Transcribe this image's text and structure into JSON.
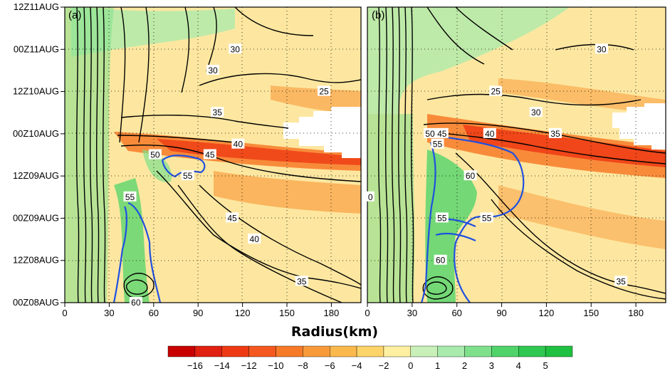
{
  "chart_data": [
    {
      "type": "heatmap",
      "panel_label": "(a)",
      "xlabel": "Radius(km)",
      "x_ticks": [
        0,
        30,
        60,
        90,
        120,
        150,
        180
      ],
      "xlim": [
        0,
        200
      ],
      "y_ticks": [
        "00Z08AUG",
        "12Z08AUG",
        "00Z09AUG",
        "12Z09AUG",
        "00Z10AUG",
        "12Z10AUG",
        "00Z11AUG",
        "12Z11AUG"
      ],
      "grid": "dotted",
      "contour_labels": [
        {
          "text": "30",
          "x": 115,
          "y": "00Z11AUG"
        },
        {
          "text": "30",
          "x": 100,
          "y": "18Z10AUG"
        },
        {
          "text": "25",
          "x": 175,
          "y": "12Z10AUG"
        },
        {
          "text": "35",
          "x": 103,
          "y": "06Z10AUG"
        },
        {
          "text": "40",
          "x": 117,
          "y": "21Z09AUG"
        },
        {
          "text": "45",
          "x": 98,
          "y": "18Z09AUG"
        },
        {
          "text": "50",
          "x": 61,
          "y": "18Z09AUG"
        },
        {
          "text": "55",
          "x": 83,
          "y": "12Z09AUG"
        },
        {
          "text": "55",
          "x": 44,
          "y": "06Z09AUG"
        },
        {
          "text": "45",
          "x": 113,
          "y": "00Z09AUG"
        },
        {
          "text": "40",
          "x": 128,
          "y": "18Z08AUG"
        },
        {
          "text": "35",
          "x": 160,
          "y": "06Z08AUG"
        },
        {
          "text": "60",
          "x": 48,
          "y": "00Z08AUG"
        }
      ]
    },
    {
      "type": "heatmap",
      "panel_label": "(b)",
      "xlabel": "Radius(km)",
      "x_ticks": [
        0,
        30,
        60,
        90,
        120,
        150,
        180
      ],
      "xlim": [
        0,
        200
      ],
      "y_ticks": [
        "00Z08AUG",
        "12Z08AUG",
        "00Z09AUG",
        "12Z09AUG",
        "00Z10AUG",
        "12Z10AUG",
        "00Z11AUG",
        "12Z11AUG"
      ],
      "grid": "dotted",
      "contour_labels": [
        {
          "text": "30",
          "x": 157,
          "y": "00Z11AUG"
        },
        {
          "text": "25",
          "x": 86,
          "y": "12Z10AUG"
        },
        {
          "text": "30",
          "x": 113,
          "y": "06Z10AUG"
        },
        {
          "text": "45",
          "x": 50,
          "y": "00Z10AUG"
        },
        {
          "text": "50",
          "x": 42,
          "y": "00Z10AUG"
        },
        {
          "text": "55",
          "x": 47,
          "y": "21Z09AUG"
        },
        {
          "text": "40",
          "x": 82,
          "y": "00Z10AUG"
        },
        {
          "text": "35",
          "x": 126,
          "y": "00Z10AUG"
        },
        {
          "text": "60",
          "x": 69,
          "y": "12Z09AUG"
        },
        {
          "text": "0",
          "x": 2,
          "y": "06Z09AUG"
        },
        {
          "text": "55",
          "x": 50,
          "y": "00Z09AUG"
        },
        {
          "text": "55",
          "x": 80,
          "y": "00Z09AUG"
        },
        {
          "text": "60",
          "x": 49,
          "y": "12Z08AUG"
        },
        {
          "text": "35",
          "x": 170,
          "y": "06Z08AUG"
        }
      ]
    }
  ],
  "colorbar": {
    "labels": [
      "−16",
      "−14",
      "−12",
      "−10",
      "−8",
      "−6",
      "−4",
      "−2",
      "0",
      "1",
      "2",
      "3",
      "4",
      "5"
    ],
    "colors": [
      "#c80000",
      "#e02010",
      "#ee3a14",
      "#f5581e",
      "#f77a28",
      "#f99a3a",
      "#fbb84c",
      "#fdd46a",
      "#fef0a0",
      "#c8f0b8",
      "#a8ebac",
      "#7fe08c",
      "#50d46a",
      "#30c850",
      "#20c040"
    ]
  }
}
